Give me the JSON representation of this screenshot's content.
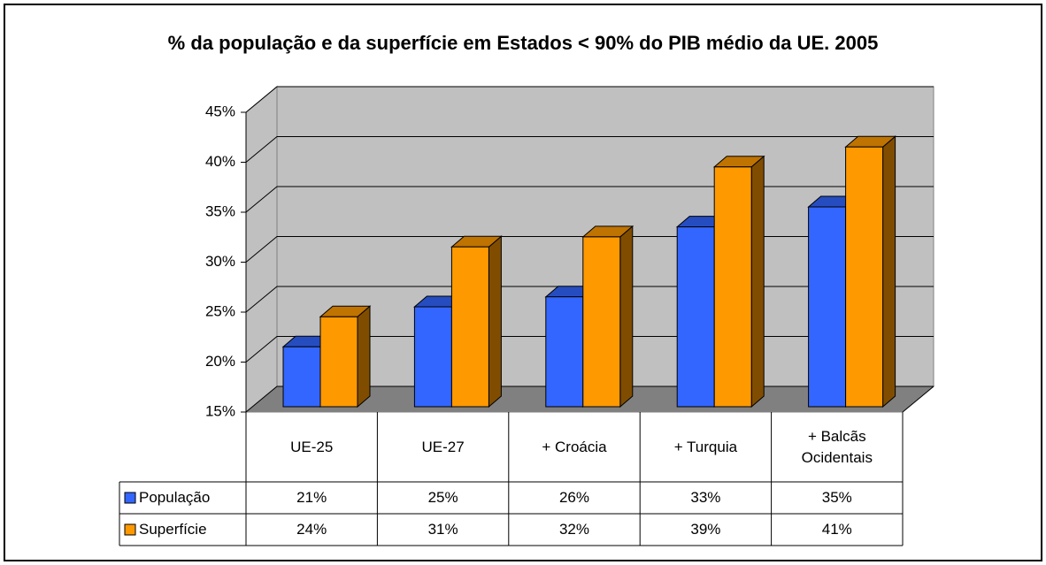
{
  "chart_data": {
    "type": "bar3d",
    "title": "% da população e da superfície em Estados < 90% do PIB médio da UE. 2005",
    "categories": [
      "UE-25",
      "UE-27",
      "+ Croácia",
      "+ Turquia",
      "+ Balcãs Ocidentais"
    ],
    "series": [
      {
        "name": "População",
        "color": "#3366ff",
        "values": [
          21,
          25,
          26,
          33,
          35
        ],
        "value_labels": [
          "21%",
          "25%",
          "26%",
          "33%",
          "35%"
        ]
      },
      {
        "name": "Superfície",
        "color": "#ff9900",
        "values": [
          24,
          31,
          32,
          39,
          41
        ],
        "value_labels": [
          "24%",
          "31%",
          "32%",
          "39%",
          "41%"
        ]
      }
    ],
    "ylim": [
      15,
      45
    ],
    "yticks": [
      {
        "value": 15,
        "label": "15%"
      },
      {
        "value": 20,
        "label": "20%"
      },
      {
        "value": 25,
        "label": "25%"
      },
      {
        "value": 30,
        "label": "30%"
      },
      {
        "value": 35,
        "label": "35%"
      },
      {
        "value": 40,
        "label": "40%"
      },
      {
        "value": 45,
        "label": "45%"
      }
    ],
    "grid": true
  }
}
